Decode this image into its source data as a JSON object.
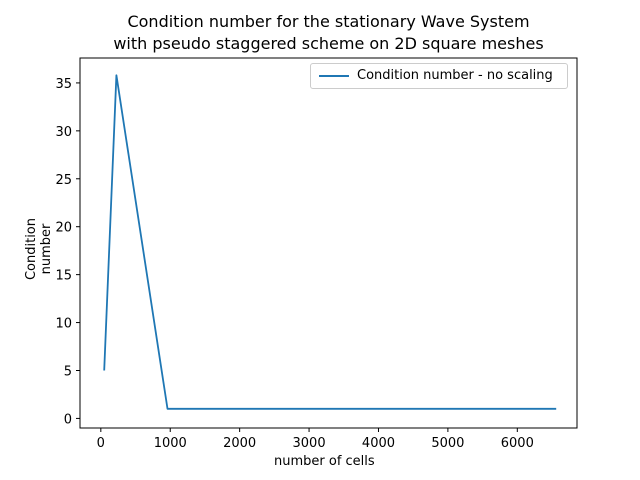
{
  "chart_data": {
    "type": "line",
    "title_line1": "Condition number for the stationary Wave System",
    "title_line2": "with pseudo staggered scheme on 2D square meshes",
    "xlabel": "number of cells",
    "ylabel": "Condition number",
    "xlim": [
      -300,
      6860
    ],
    "ylim": [
      -1.0,
      37.6
    ],
    "xticks": [
      0,
      1000,
      2000,
      3000,
      4000,
      5000,
      6000
    ],
    "yticks": [
      0,
      5,
      10,
      15,
      20,
      25,
      30,
      35
    ],
    "grid": false,
    "legend_position": "top-right",
    "series": [
      {
        "name": "Condition number - no scaling",
        "color": "#1f77b4",
        "x": [
          49,
          225,
          961,
          3969,
          6561
        ],
        "y": [
          5.0,
          35.8,
          1.0,
          1.0,
          1.0
        ]
      }
    ]
  }
}
